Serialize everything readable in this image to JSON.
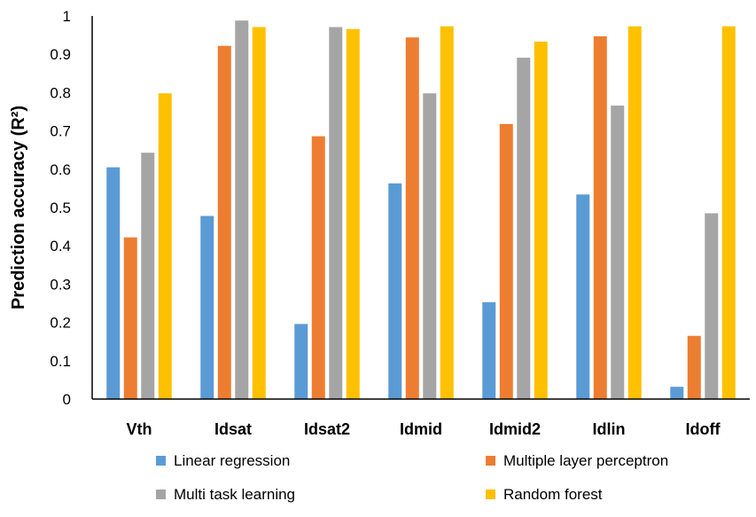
{
  "chart_data": {
    "type": "bar",
    "title": "",
    "xlabel": "",
    "ylabel": "Prediction  accuracy (R²)",
    "ylim": [
      0,
      1
    ],
    "yticks": [
      "0",
      "0.1",
      "0.2",
      "0.3",
      "0.4",
      "0.5",
      "0.6",
      "0.7",
      "0.8",
      "0.9",
      "1"
    ],
    "grid": false,
    "legend_position": "bottom",
    "categories": [
      "Vth",
      "Idsat",
      "Idsat2",
      "Idmid",
      "Idmid2",
      "Idlin",
      "Idoff"
    ],
    "series": [
      {
        "name": "Linear regression",
        "color": "#5B9BD5",
        "values": [
          0.605,
          0.478,
          0.196,
          0.563,
          0.253,
          0.534,
          0.032
        ]
      },
      {
        "name": "Multiple layer perceptron",
        "color": "#ED7D31",
        "values": [
          0.422,
          0.922,
          0.686,
          0.944,
          0.718,
          0.947,
          0.165
        ]
      },
      {
        "name": "Multi task learning",
        "color": "#A5A5A5",
        "values": [
          0.643,
          0.988,
          0.971,
          0.798,
          0.891,
          0.766,
          0.485
        ]
      },
      {
        "name": "Random forest",
        "color": "#FFC000",
        "values": [
          0.798,
          0.971,
          0.966,
          0.973,
          0.933,
          0.973,
          0.973
        ]
      }
    ]
  }
}
